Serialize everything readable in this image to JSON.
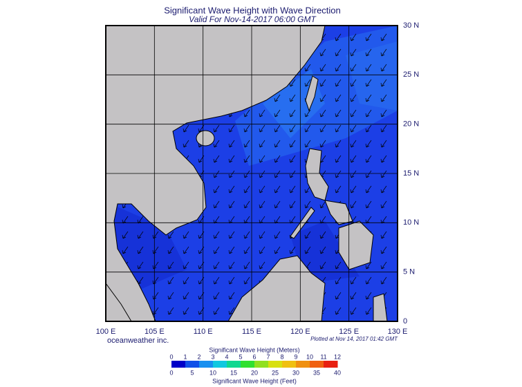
{
  "header": {
    "title": "Significant Wave Height with Wave Direction",
    "subtitle": "Valid For Nov-14-2017 06:00 GMT"
  },
  "map": {
    "lon_labels": [
      "100 E",
      "105 E",
      "110 E",
      "115 E",
      "120 E",
      "125 E",
      "130 E"
    ],
    "lat_labels": [
      "30 N",
      "25 N",
      "20 N",
      "15 N",
      "10 N",
      "5 N",
      "0"
    ]
  },
  "footer": {
    "brand": "oceanweather inc.",
    "plotted": "Plotted at Nov 14, 2017 01:42 GMT"
  },
  "colorbar": {
    "meters_title": "Significant Wave Height (Meters)",
    "meters_ticks": [
      "0",
      "1",
      "2",
      "3",
      "4",
      "5",
      "6",
      "7",
      "8",
      "9",
      "10",
      "11",
      "12"
    ],
    "feet_ticks": [
      "0",
      "5",
      "10",
      "15",
      "20",
      "25",
      "30",
      "35",
      "40"
    ],
    "feet_title": "Significant Wave Height (Feet)"
  }
}
